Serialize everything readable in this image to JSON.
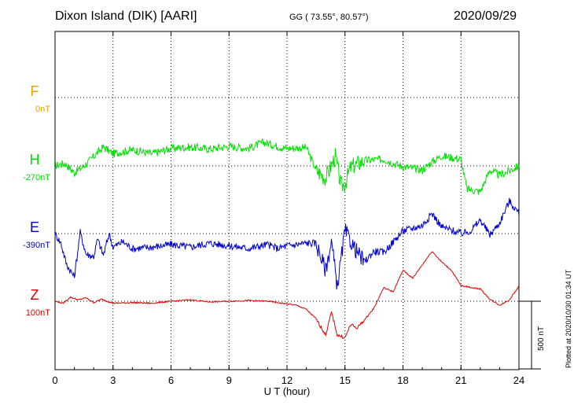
{
  "header": {
    "station": "Dixon Island (DIK)  [AARI]",
    "coords": "GG ( 73.55°,  80.57°)",
    "date": "2020/09/29"
  },
  "plotted_note": "Plotted at 2020/10/30 01:34 UT",
  "scale_bar_label": "500 nT",
  "colors": {
    "F": "#f0a000",
    "H": "#00e000",
    "E": "#0000d0",
    "Z": "#e00000"
  },
  "chart_data": {
    "type": "line",
    "xlabel": "U T (hour)",
    "x_ticks": [
      0,
      3,
      6,
      9,
      12,
      15,
      18,
      21,
      24
    ],
    "xlim": [
      0,
      24
    ],
    "grid": true,
    "components": [
      {
        "name": "F",
        "baseline": "0nT"
      },
      {
        "name": "H",
        "baseline": "-270nT"
      },
      {
        "name": "E",
        "baseline": "-390nT"
      },
      {
        "name": "Z",
        "baseline": "100nT"
      }
    ],
    "series": [
      {
        "name": "H",
        "unit": "nT",
        "x": [
          0,
          0.5,
          1.0,
          1.5,
          2.0,
          2.5,
          3.0,
          4.0,
          5.0,
          6.0,
          7.0,
          8.0,
          9.0,
          10.0,
          10.8,
          11.5,
          12.0,
          13.0,
          13.5,
          14.0,
          14.5,
          14.8,
          15.0,
          15.3,
          16.0,
          17.0,
          17.5,
          18.0,
          19.0,
          19.5,
          20.0,
          21.0,
          21.3,
          22.0,
          22.5,
          23.0,
          24.0
        ],
        "y": [
          -270,
          -250,
          -320,
          -270,
          -200,
          -130,
          -180,
          -150,
          -180,
          -140,
          -130,
          -145,
          -125,
          -140,
          -95,
          -125,
          -140,
          -135,
          -300,
          -360,
          -200,
          -420,
          -400,
          -280,
          -230,
          -220,
          -250,
          -275,
          -300,
          -240,
          -195,
          -220,
          -440,
          -460,
          -300,
          -340,
          -270
        ]
      },
      {
        "name": "E",
        "unit": "nT",
        "x": [
          0,
          0.3,
          0.6,
          1.0,
          1.3,
          1.6,
          2.0,
          2.2,
          2.5,
          2.8,
          3.0,
          3.5,
          4.0,
          5.0,
          6.0,
          7.0,
          8.0,
          9.0,
          10.0,
          11.0,
          11.5,
          12.0,
          13.0,
          13.5,
          14.0,
          14.3,
          14.6,
          15.0,
          15.5,
          16.0,
          16.5,
          17.0,
          17.5,
          18.0,
          19.0,
          19.5,
          20.0,
          21.0,
          21.5,
          22.0,
          22.5,
          23.0,
          23.5,
          24.0
        ],
        "y": [
          -390,
          -460,
          -620,
          -710,
          -380,
          -540,
          -560,
          -430,
          -550,
          -390,
          -490,
          -450,
          -500,
          -490,
          -470,
          -490,
          -460,
          -480,
          -500,
          -470,
          -500,
          -480,
          -460,
          -460,
          -660,
          -450,
          -780,
          -370,
          -500,
          -600,
          -520,
          -530,
          -450,
          -370,
          -330,
          -240,
          -340,
          -390,
          -370,
          -290,
          -400,
          -310,
          -150,
          -240
        ]
      },
      {
        "name": "Z",
        "unit": "nT",
        "x": [
          0,
          0.4,
          0.8,
          1.2,
          1.6,
          2.0,
          2.4,
          2.8,
          3.0,
          4.0,
          5.0,
          6.0,
          7.0,
          8.0,
          9.0,
          10.0,
          11.0,
          12.0,
          12.5,
          13.0,
          13.5,
          14.0,
          14.3,
          14.6,
          15.0,
          15.3,
          15.6,
          16.0,
          16.5,
          17.0,
          17.5,
          18.0,
          18.5,
          19.0,
          19.5,
          20.0,
          20.5,
          21.0,
          22.0,
          22.5,
          23.0,
          23.5,
          24.0
        ],
        "y": [
          100,
          85,
          130,
          110,
          125,
          90,
          115,
          95,
          85,
          90,
          85,
          100,
          110,
          95,
          100,
          105,
          100,
          80,
          70,
          40,
          -30,
          -150,
          20,
          -150,
          -170,
          -70,
          -100,
          -40,
          50,
          200,
          170,
          330,
          270,
          370,
          470,
          390,
          330,
          215,
          190,
          115,
          70,
          110,
          210
        ]
      }
    ]
  }
}
